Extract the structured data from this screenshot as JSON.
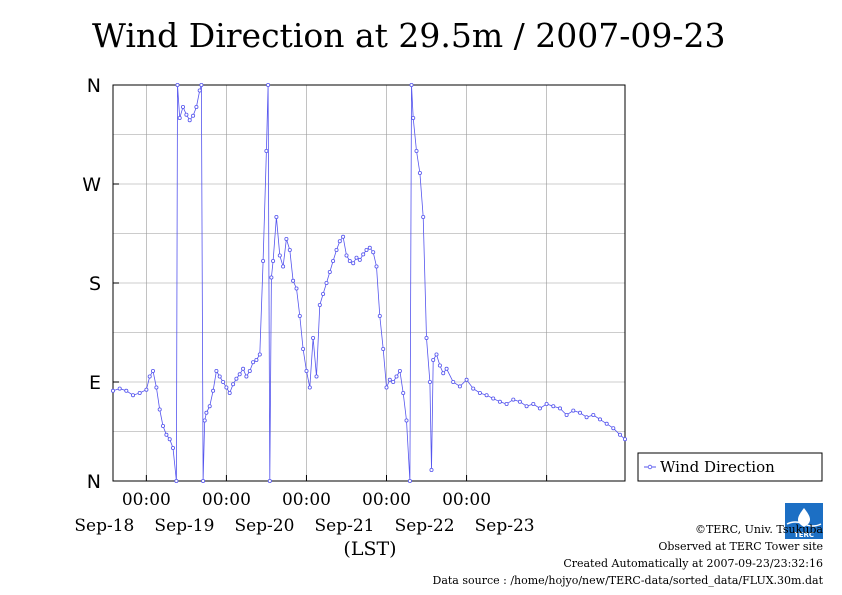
{
  "title": "Wind Direction at 29.5m / 2007-09-23",
  "footer": {
    "copyright": "©TERC, Univ. Tsukuba",
    "observed": "Observed at TERC Tower site",
    "created": "Created Automatically at 2007-09-23/23:32:16",
    "source": "Data source : /home/hojyo/new/TERC-data/sorted_data/FLUX.30m.dat"
  },
  "logo_text": "TERC",
  "colors": {
    "series": "#5555ee",
    "grid": "#999999",
    "axis": "#000000"
  },
  "chart_data": {
    "type": "line",
    "x_label": "(LST)",
    "x_range": [
      "2007-09-17T14:00",
      "2007-09-23T23:30"
    ],
    "y_range": [
      0,
      360
    ],
    "y_ticks": [
      {
        "value": 0,
        "label": "N"
      },
      {
        "value": 90,
        "label": "E"
      },
      {
        "value": 180,
        "label": "S"
      },
      {
        "value": 270,
        "label": "W"
      },
      {
        "value": 360,
        "label": "N"
      }
    ],
    "x_tick_labels": [
      "00:00",
      "00:00",
      "00:00",
      "00:00",
      "00:00"
    ],
    "date_labels": [
      "Sep-18",
      "Sep-19",
      "Sep-20",
      "Sep-21",
      "Sep-22",
      "Sep-23"
    ],
    "grid": true,
    "legend_position": "right",
    "series": [
      {
        "name": "Wind Direction",
        "points": [
          [
            "2007-09-17T14:00",
            82
          ],
          [
            "2007-09-17T16:00",
            84
          ],
          [
            "2007-09-17T18:00",
            82
          ],
          [
            "2007-09-17T20:00",
            78
          ],
          [
            "2007-09-17T22:00",
            80
          ],
          [
            "2007-09-18T00:00",
            83
          ],
          [
            "2007-09-18T01:00",
            95
          ],
          [
            "2007-09-18T02:00",
            100
          ],
          [
            "2007-09-18T03:00",
            85
          ],
          [
            "2007-09-18T04:00",
            65
          ],
          [
            "2007-09-18T05:00",
            50
          ],
          [
            "2007-09-18T06:00",
            42
          ],
          [
            "2007-09-18T07:00",
            38
          ],
          [
            "2007-09-18T08:00",
            30
          ],
          [
            "2007-09-18T09:00",
            0
          ],
          [
            "2007-09-18T09:20",
            360
          ],
          [
            "2007-09-18T10:00",
            330
          ],
          [
            "2007-09-18T11:00",
            340
          ],
          [
            "2007-09-18T12:00",
            333
          ],
          [
            "2007-09-18T13:00",
            328
          ],
          [
            "2007-09-18T14:00",
            332
          ],
          [
            "2007-09-18T15:00",
            340
          ],
          [
            "2007-09-18T16:00",
            355
          ],
          [
            "2007-09-18T16:30",
            360
          ],
          [
            "2007-09-18T17:00",
            0
          ],
          [
            "2007-09-18T17:30",
            55
          ],
          [
            "2007-09-18T18:00",
            62
          ],
          [
            "2007-09-18T19:00",
            68
          ],
          [
            "2007-09-18T20:00",
            82
          ],
          [
            "2007-09-18T21:00",
            100
          ],
          [
            "2007-09-18T22:00",
            95
          ],
          [
            "2007-09-18T23:00",
            90
          ],
          [
            "2007-09-19T00:00",
            85
          ],
          [
            "2007-09-19T01:00",
            80
          ],
          [
            "2007-09-19T02:00",
            88
          ],
          [
            "2007-09-19T03:00",
            93
          ],
          [
            "2007-09-19T04:00",
            97
          ],
          [
            "2007-09-19T05:00",
            102
          ],
          [
            "2007-09-19T06:00",
            95
          ],
          [
            "2007-09-19T07:00",
            100
          ],
          [
            "2007-09-19T08:00",
            108
          ],
          [
            "2007-09-19T09:00",
            110
          ],
          [
            "2007-09-19T10:00",
            115
          ],
          [
            "2007-09-19T11:00",
            200
          ],
          [
            "2007-09-19T12:00",
            300
          ],
          [
            "2007-09-19T12:30",
            360
          ],
          [
            "2007-09-19T13:00",
            0
          ],
          [
            "2007-09-19T13:30",
            185
          ],
          [
            "2007-09-19T14:00",
            200
          ],
          [
            "2007-09-19T15:00",
            240
          ],
          [
            "2007-09-19T16:00",
            205
          ],
          [
            "2007-09-19T17:00",
            195
          ],
          [
            "2007-09-19T18:00",
            220
          ],
          [
            "2007-09-19T19:00",
            210
          ],
          [
            "2007-09-19T20:00",
            182
          ],
          [
            "2007-09-19T21:00",
            175
          ],
          [
            "2007-09-19T22:00",
            150
          ],
          [
            "2007-09-19T23:00",
            120
          ],
          [
            "2007-09-20T00:00",
            100
          ],
          [
            "2007-09-20T01:00",
            85
          ],
          [
            "2007-09-20T02:00",
            130
          ],
          [
            "2007-09-20T03:00",
            95
          ],
          [
            "2007-09-20T04:00",
            160
          ],
          [
            "2007-09-20T05:00",
            170
          ],
          [
            "2007-09-20T06:00",
            180
          ],
          [
            "2007-09-20T07:00",
            190
          ],
          [
            "2007-09-20T08:00",
            200
          ],
          [
            "2007-09-20T09:00",
            210
          ],
          [
            "2007-09-20T10:00",
            218
          ],
          [
            "2007-09-20T11:00",
            222
          ],
          [
            "2007-09-20T12:00",
            205
          ],
          [
            "2007-09-20T13:00",
            200
          ],
          [
            "2007-09-20T14:00",
            198
          ],
          [
            "2007-09-20T15:00",
            203
          ],
          [
            "2007-09-20T16:00",
            201
          ],
          [
            "2007-09-20T17:00",
            206
          ],
          [
            "2007-09-20T18:00",
            210
          ],
          [
            "2007-09-20T19:00",
            212
          ],
          [
            "2007-09-20T20:00",
            208
          ],
          [
            "2007-09-20T21:00",
            195
          ],
          [
            "2007-09-20T22:00",
            150
          ],
          [
            "2007-09-20T23:00",
            120
          ],
          [
            "2007-09-21T00:00",
            85
          ],
          [
            "2007-09-21T01:00",
            92
          ],
          [
            "2007-09-21T02:00",
            90
          ],
          [
            "2007-09-21T03:00",
            95
          ],
          [
            "2007-09-21T04:00",
            100
          ],
          [
            "2007-09-21T05:00",
            80
          ],
          [
            "2007-09-21T06:00",
            55
          ],
          [
            "2007-09-21T07:00",
            0
          ],
          [
            "2007-09-21T07:30",
            360
          ],
          [
            "2007-09-21T08:00",
            330
          ],
          [
            "2007-09-21T09:00",
            300
          ],
          [
            "2007-09-21T10:00",
            280
          ],
          [
            "2007-09-21T11:00",
            240
          ],
          [
            "2007-09-21T12:00",
            130
          ],
          [
            "2007-09-21T13:00",
            90
          ],
          [
            "2007-09-21T13:30",
            10
          ],
          [
            "2007-09-21T14:00",
            110
          ],
          [
            "2007-09-21T15:00",
            115
          ],
          [
            "2007-09-21T16:00",
            105
          ],
          [
            "2007-09-21T17:00",
            98
          ],
          [
            "2007-09-21T18:00",
            102
          ],
          [
            "2007-09-21T20:00",
            90
          ],
          [
            "2007-09-21T22:00",
            86
          ],
          [
            "2007-09-22T00:00",
            92
          ],
          [
            "2007-09-22T02:00",
            84
          ],
          [
            "2007-09-22T04:00",
            80
          ],
          [
            "2007-09-22T06:00",
            78
          ],
          [
            "2007-09-22T08:00",
            75
          ],
          [
            "2007-09-22T10:00",
            72
          ],
          [
            "2007-09-22T12:00",
            70
          ],
          [
            "2007-09-22T14:00",
            74
          ],
          [
            "2007-09-22T16:00",
            72
          ],
          [
            "2007-09-22T18:00",
            68
          ],
          [
            "2007-09-22T20:00",
            70
          ],
          [
            "2007-09-22T22:00",
            66
          ],
          [
            "2007-09-23T00:00",
            70
          ],
          [
            "2007-09-23T02:00",
            68
          ],
          [
            "2007-09-23T04:00",
            66
          ],
          [
            "2007-09-23T06:00",
            60
          ],
          [
            "2007-09-23T08:00",
            64
          ],
          [
            "2007-09-23T10:00",
            62
          ],
          [
            "2007-09-23T12:00",
            58
          ],
          [
            "2007-09-23T14:00",
            60
          ],
          [
            "2007-09-23T16:00",
            56
          ],
          [
            "2007-09-23T18:00",
            52
          ],
          [
            "2007-09-23T20:00",
            48
          ],
          [
            "2007-09-23T22:00",
            42
          ],
          [
            "2007-09-23T23:30",
            38
          ]
        ]
      }
    ]
  }
}
